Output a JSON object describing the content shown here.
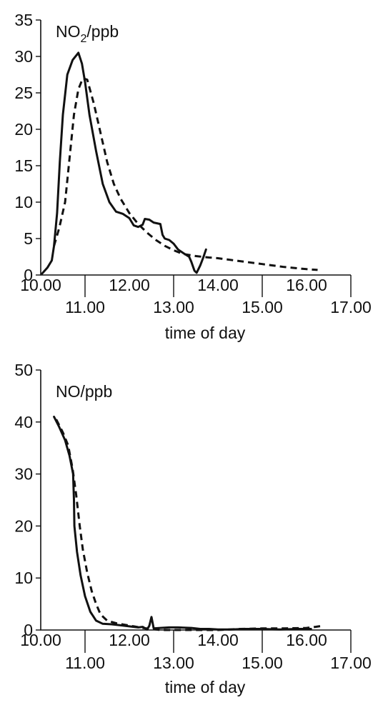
{
  "chart_data": [
    {
      "type": "line",
      "ylabel": {
        "base": "NO",
        "sub": "2",
        "unit": "/ppb"
      },
      "xlabel": "time of day",
      "xlim": [
        10.0,
        17.0
      ],
      "ylim": [
        0,
        35
      ],
      "x_ticks": [
        "10.00",
        "11.00",
        "12.00",
        "13.00",
        "14.00",
        "15.00",
        "16.00",
        "17.00"
      ],
      "y_ticks": [
        "0",
        "5",
        "10",
        "15",
        "20",
        "25",
        "30",
        "35"
      ],
      "grid": false,
      "legend": "none",
      "series": [
        {
          "style": "solid",
          "points": [
            [
              10.03,
              0.2
            ],
            [
              10.15,
              1.0
            ],
            [
              10.25,
              2.0
            ],
            [
              10.3,
              4.0
            ],
            [
              10.37,
              8.5
            ],
            [
              10.43,
              15.5
            ],
            [
              10.5,
              22.0
            ],
            [
              10.6,
              27.5
            ],
            [
              10.72,
              29.5
            ],
            [
              10.85,
              30.5
            ],
            [
              10.93,
              29.0
            ],
            [
              11.0,
              26.5
            ],
            [
              11.1,
              22.0
            ],
            [
              11.25,
              17.0
            ],
            [
              11.4,
              12.5
            ],
            [
              11.55,
              10.0
            ],
            [
              11.7,
              8.7
            ],
            [
              11.85,
              8.4
            ],
            [
              12.0,
              7.8
            ],
            [
              12.1,
              6.8
            ],
            [
              12.2,
              6.6
            ],
            [
              12.3,
              6.9
            ],
            [
              12.35,
              7.7
            ],
            [
              12.45,
              7.6
            ],
            [
              12.55,
              7.2
            ],
            [
              12.7,
              7.0
            ],
            [
              12.75,
              5.5
            ],
            [
              12.8,
              5.0
            ],
            [
              12.9,
              4.8
            ],
            [
              13.0,
              4.3
            ],
            [
              13.1,
              3.5
            ],
            [
              13.22,
              3.0
            ],
            [
              13.35,
              2.5
            ],
            [
              13.4,
              1.8
            ],
            [
              13.47,
              0.6
            ],
            [
              13.52,
              0.3
            ],
            [
              13.6,
              1.3
            ],
            [
              13.67,
              2.4
            ],
            [
              13.73,
              3.5
            ]
          ]
        },
        {
          "style": "dashed",
          "points": [
            [
              10.3,
              4.0
            ],
            [
              10.42,
              6.5
            ],
            [
              10.55,
              10.0
            ],
            [
              10.65,
              16.0
            ],
            [
              10.75,
              22.0
            ],
            [
              10.85,
              25.5
            ],
            [
              10.95,
              27.0
            ],
            [
              11.05,
              26.8
            ],
            [
              11.2,
              23.5
            ],
            [
              11.35,
              19.5
            ],
            [
              11.5,
              15.5
            ],
            [
              11.65,
              12.5
            ],
            [
              11.8,
              10.5
            ],
            [
              12.0,
              8.5
            ],
            [
              12.2,
              7.0
            ],
            [
              12.4,
              5.8
            ],
            [
              12.6,
              4.8
            ],
            [
              12.8,
              4.0
            ],
            [
              13.0,
              3.4
            ],
            [
              13.2,
              2.9
            ],
            [
              13.5,
              2.6
            ],
            [
              13.8,
              2.4
            ],
            [
              14.0,
              2.3
            ],
            [
              14.5,
              1.9
            ],
            [
              15.0,
              1.5
            ],
            [
              15.5,
              1.1
            ],
            [
              16.0,
              0.8
            ],
            [
              16.25,
              0.7
            ]
          ]
        }
      ]
    },
    {
      "type": "line",
      "ylabel": {
        "base": "NO",
        "sub": "",
        "unit": "/ppb"
      },
      "xlabel": "time of day",
      "xlim": [
        10.0,
        17.0
      ],
      "ylim": [
        0,
        50
      ],
      "x_ticks": [
        "10.00",
        "11.00",
        "12.00",
        "13.00",
        "14.00",
        "15.00",
        "16.00",
        "17.00"
      ],
      "y_ticks": [
        "0",
        "10",
        "20",
        "30",
        "40",
        "50"
      ],
      "grid": false,
      "legend": "none",
      "series": [
        {
          "style": "solid",
          "points": [
            [
              10.3,
              41.0
            ],
            [
              10.42,
              39.0
            ],
            [
              10.55,
              36.5
            ],
            [
              10.65,
              33.5
            ],
            [
              10.73,
              30.0
            ],
            [
              10.75,
              25.0
            ],
            [
              10.76,
              20.0
            ],
            [
              10.82,
              15.0
            ],
            [
              10.9,
              10.5
            ],
            [
              11.0,
              6.5
            ],
            [
              11.12,
              3.5
            ],
            [
              11.25,
              1.8
            ],
            [
              11.4,
              1.2
            ],
            [
              11.6,
              1.1
            ],
            [
              11.8,
              0.9
            ],
            [
              12.0,
              0.7
            ],
            [
              12.1,
              0.6
            ],
            [
              12.2,
              0.5
            ],
            [
              12.3,
              0.6
            ],
            [
              12.4,
              0.1
            ],
            [
              12.45,
              0.8
            ],
            [
              12.5,
              2.5
            ],
            [
              12.55,
              0.3
            ],
            [
              12.7,
              0.4
            ],
            [
              12.9,
              0.5
            ],
            [
              13.1,
              0.5
            ],
            [
              13.4,
              0.4
            ],
            [
              13.6,
              0.2
            ],
            [
              13.8,
              0.2
            ],
            [
              14.0,
              0.1
            ],
            [
              14.3,
              0.1
            ],
            [
              14.6,
              0.2
            ],
            [
              15.0,
              0.2
            ],
            [
              15.4,
              0.1
            ],
            [
              15.8,
              0.2
            ],
            [
              16.1,
              0.2
            ]
          ]
        },
        {
          "style": "dashed",
          "points": [
            [
              10.35,
              40.5
            ],
            [
              10.5,
              38.0
            ],
            [
              10.62,
              35.5
            ],
            [
              10.72,
              31.0
            ],
            [
              10.8,
              26.0
            ],
            [
              10.88,
              20.0
            ],
            [
              10.95,
              15.5
            ],
            [
              11.05,
              11.0
            ],
            [
              11.15,
              7.5
            ],
            [
              11.25,
              5.0
            ],
            [
              11.35,
              3.0
            ],
            [
              11.5,
              1.8
            ],
            [
              11.7,
              1.3
            ],
            [
              11.9,
              1.0
            ],
            [
              12.1,
              0.7
            ],
            [
              12.3,
              0.4
            ],
            [
              12.5,
              0.2
            ],
            [
              12.7,
              0.0
            ],
            [
              13.0,
              0.0
            ],
            [
              13.5,
              0.0
            ],
            [
              14.0,
              0.0
            ],
            [
              14.5,
              0.2
            ],
            [
              15.0,
              0.3
            ],
            [
              15.5,
              0.3
            ],
            [
              16.0,
              0.4
            ],
            [
              16.2,
              0.6
            ],
            [
              16.35,
              0.8
            ]
          ]
        }
      ]
    }
  ]
}
